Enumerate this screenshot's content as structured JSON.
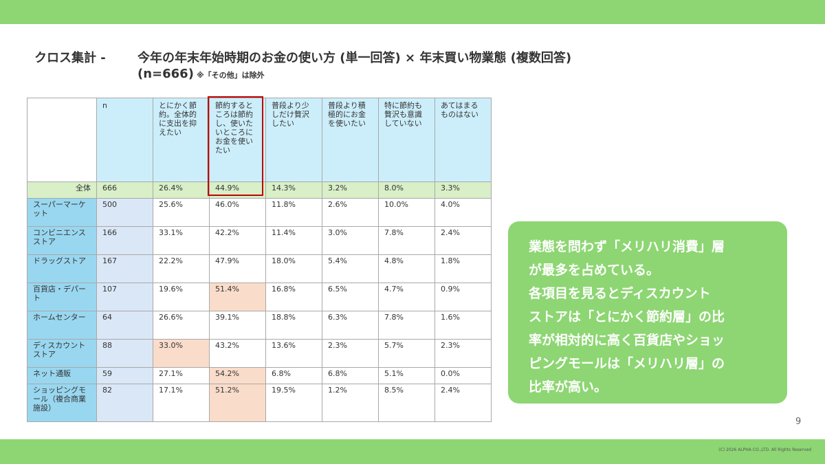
{
  "header": {
    "title_label": "クロス集計 -",
    "title_text": "今年の年末年始時期のお金の使い方 (単一回答) × 年末買い物業態 (複数回答)",
    "n_text": "(n=666)",
    "note": "※「その他」は除外"
  },
  "table": {
    "columns": [
      "",
      "n",
      "とにかく節約。全体的に支出を抑えたい",
      "節約するところは節約し、使いたいところにお金を使いたい",
      "普段より少しだけ贅沢したい",
      "普段より積極的にお金を使いたい",
      "特に節約も贅沢も意識していない",
      "あてはまるものはない"
    ],
    "total": {
      "label": "全体",
      "cells": [
        "666",
        "26.4%",
        "44.9%",
        "14.3%",
        "3.2%",
        "8.0%",
        "3.3%"
      ]
    },
    "rows": [
      {
        "label": "スーパーマーケット",
        "cells": [
          "500",
          "25.6%",
          "46.0%",
          "11.8%",
          "2.6%",
          "10.0%",
          "4.0%"
        ]
      },
      {
        "label": "コンビニエンスストア",
        "cells": [
          "166",
          "33.1%",
          "42.2%",
          "11.4%",
          "3.0%",
          "7.8%",
          "2.4%"
        ]
      },
      {
        "label": "ドラッグストア",
        "cells": [
          "167",
          "22.2%",
          "47.9%",
          "18.0%",
          "5.4%",
          "4.8%",
          "1.8%"
        ]
      },
      {
        "label": "百貨店・デパート",
        "cells": [
          "107",
          "19.6%",
          "51.4%",
          "16.8%",
          "6.5%",
          "4.7%",
          "0.9%"
        ]
      },
      {
        "label": "ホームセンター",
        "cells": [
          "64",
          "26.6%",
          "39.1%",
          "18.8%",
          "6.3%",
          "7.8%",
          "1.6%"
        ]
      },
      {
        "label": "ディスカウントストア",
        "cells": [
          "88",
          "33.0%",
          "43.2%",
          "13.6%",
          "2.3%",
          "5.7%",
          "2.3%"
        ]
      },
      {
        "label": "ネット通販",
        "cells": [
          "59",
          "27.1%",
          "54.2%",
          "6.8%",
          "6.8%",
          "5.1%",
          "0.0%"
        ]
      },
      {
        "label": "ショッピングモール（複合商業施設）",
        "cells": [
          "82",
          "17.1%",
          "51.2%",
          "19.5%",
          "1.2%",
          "8.5%",
          "2.4%"
        ]
      }
    ]
  },
  "callout": {
    "lines": [
      "業態を問わず「メリハリ消費」層",
      "が最多を占めている。",
      "各項目を見るとディスカウント",
      "ストアは「とにかく節約層」の比",
      "率が相対的に高く百貨店やショッ",
      "ピングモールは「メリハリ層」の",
      "比率が高い。"
    ]
  },
  "footer": {
    "page_number": "9",
    "copyright": "(C) 2026 ALPHA CO.,LTD. All Rights Reserved"
  },
  "colors": {
    "accent_green": "#8dd673",
    "header_blue": "#cceefa",
    "rowlabel_blue": "#99d7f0",
    "n_blue": "#dae7f7",
    "total_green": "#d8efc8",
    "highlight_peach": "#fadcca",
    "focus_red": "#c00000"
  }
}
